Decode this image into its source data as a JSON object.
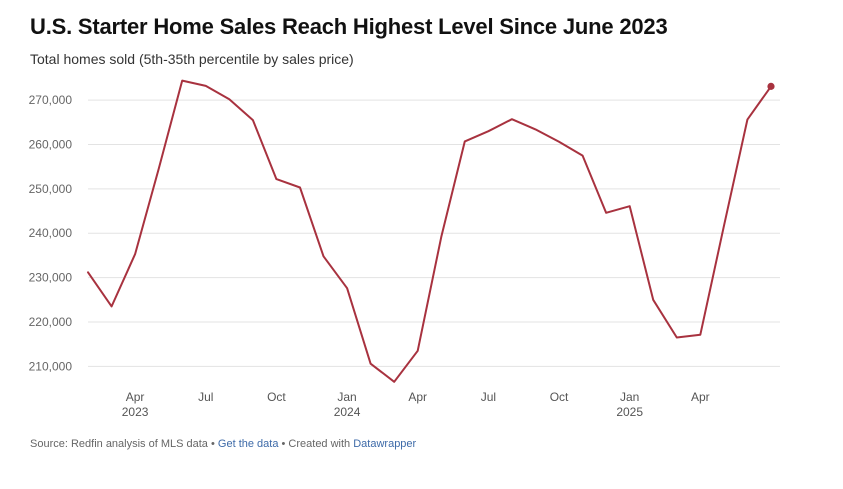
{
  "header": {
    "title": "U.S. Starter Home Sales Reach Highest Level Since June 2023",
    "subtitle": "Total homes sold (5th-35th percentile by sales price)"
  },
  "footer": {
    "source_prefix": "Source: Redfin analysis of MLS data",
    "sep1": " • ",
    "get_data_link": "Get the data",
    "sep2": " • Created with ",
    "datawrapper_link": "Datawrapper"
  },
  "colors": {
    "line": "#a8323f",
    "grid": "#e3e3e3"
  },
  "chart_data": {
    "type": "line",
    "title": "U.S. Starter Home Sales Reach Highest Level Since June 2023",
    "subtitle": "Total homes sold (5th-35th percentile by sales price)",
    "xlabel": "",
    "ylabel": "",
    "ylim": [
      205000,
      276000
    ],
    "yticks": [
      210000,
      220000,
      230000,
      240000,
      250000,
      260000,
      270000
    ],
    "ytick_labels": [
      "210,000",
      "220,000",
      "230,000",
      "240,000",
      "250,000",
      "260,000",
      "270,000"
    ],
    "xticks": [
      {
        "date": "2023-04",
        "label": "Apr",
        "sublabel": "2023"
      },
      {
        "date": "2023-07",
        "label": "Jul",
        "sublabel": ""
      },
      {
        "date": "2023-10",
        "label": "Oct",
        "sublabel": ""
      },
      {
        "date": "2024-01",
        "label": "Jan",
        "sublabel": "2024"
      },
      {
        "date": "2024-04",
        "label": "Apr",
        "sublabel": ""
      },
      {
        "date": "2024-07",
        "label": "Jul",
        "sublabel": ""
      },
      {
        "date": "2024-10",
        "label": "Oct",
        "sublabel": ""
      },
      {
        "date": "2025-01",
        "label": "Jan",
        "sublabel": "2025"
      },
      {
        "date": "2025-04",
        "label": "Apr",
        "sublabel": ""
      }
    ],
    "grid": true,
    "legend": "none",
    "series": [
      {
        "x": [
          "2023-02",
          "2023-03",
          "2023-04",
          "2023-05",
          "2023-06",
          "2023-07",
          "2023-08",
          "2023-09",
          "2023-10",
          "2023-11",
          "2023-12",
          "2024-01",
          "2024-02",
          "2024-03",
          "2024-04",
          "2024-05",
          "2024-06",
          "2024-07",
          "2024-08",
          "2024-09",
          "2024-10",
          "2024-11",
          "2024-12",
          "2025-01",
          "2025-02",
          "2025-03",
          "2025-04",
          "2025-05",
          "2025-06",
          "2025-07"
        ],
        "values": [
          231200,
          223500,
          235300,
          254500,
          274400,
          273200,
          270200,
          265500,
          252200,
          250300,
          234800,
          227600,
          210600,
          206500,
          213500,
          239200,
          260700,
          263000,
          265700,
          263400,
          260600,
          257500,
          244600,
          246100,
          225000,
          216500,
          217100,
          241600,
          265600,
          273100
        ]
      }
    ]
  }
}
